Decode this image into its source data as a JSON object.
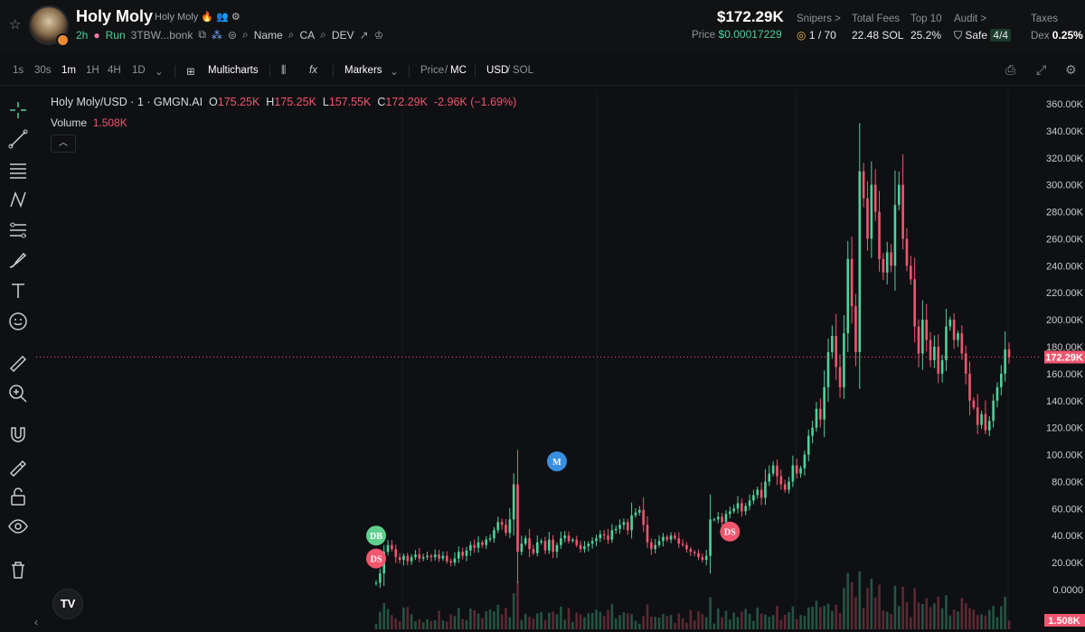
{
  "header": {
    "token_name": "Holy Moly",
    "token_sub": "Holy Moly",
    "age": "2h",
    "launchpad": "Run",
    "address": "3TBW...bonk",
    "links": [
      "Name",
      "CA",
      "DEV"
    ],
    "market_cap": "$172.29K",
    "price_label": "Price",
    "price_value": "$0.00017229",
    "snipers_label": "Snipers >",
    "snipers_value": "1 / 70",
    "total_fees_label": "Total Fees",
    "total_fees_value": "22.48 SOL",
    "top10_label": "Top 10",
    "top10_value": "25.2%",
    "audit_label": "Audit >",
    "audit_value": "Safe",
    "audit_count": "4/4",
    "taxes_label": "Taxes",
    "taxes_dex": "Dex",
    "taxes_value": "0.25%"
  },
  "toolbar": {
    "intervals": [
      "1s",
      "30s",
      "1m",
      "1H",
      "4H",
      "1D"
    ],
    "active_interval": "1m",
    "multicharts": "Multicharts",
    "markers": "Markers",
    "price_label": "Price",
    "mc_label": "MC",
    "usd_label": "USD",
    "sol_label": "SOL"
  },
  "legend": {
    "title": "Holy Moly/USD · 1 · GMGN.AI",
    "o_label": "O",
    "o": "175.25K",
    "h_label": "H",
    "h": "175.25K",
    "l_label": "L",
    "l": "157.55K",
    "c_label": "C",
    "c": "172.29K",
    "change": "-2.96K (−1.69%)",
    "volume_label": "Volume",
    "volume_value": "1.508K"
  },
  "axis": {
    "current_value": "172.29K",
    "volume_tag": "1.508K",
    "ticks": [
      "360.00K",
      "340.00K",
      "320.00K",
      "300.00K",
      "280.00K",
      "260.00K",
      "240.00K",
      "220.00K",
      "200.00K",
      "180.00K",
      "160.00K",
      "140.00K",
      "120.00K",
      "100.00K",
      "80.00K",
      "60.00K",
      "40.00K",
      "20.00K",
      "0.0000"
    ]
  },
  "markers": [
    {
      "label": "DB",
      "color": "#5fcf8f",
      "time_index": 0,
      "value": 40
    },
    {
      "label": "DS",
      "color": "#f1566f",
      "time_index": 0,
      "value": 23
    },
    {
      "label": "M",
      "color": "#3a8fe0",
      "time_index": 46,
      "value": 95
    },
    {
      "label": "DS",
      "color": "#f1566f",
      "time_index": 90,
      "value": 43
    }
  ],
  "colors": {
    "up": "#4fd19a",
    "down": "#f1566f",
    "background": "#0f1013"
  },
  "chart_data": {
    "type": "candlestick",
    "ylim": [
      0,
      360
    ],
    "unit": "K",
    "current_price": 172.29,
    "close_series": [
      5,
      12,
      28,
      33,
      30,
      24,
      22,
      25,
      21,
      24,
      26,
      23,
      24,
      25,
      24,
      26,
      23,
      25,
      21,
      20,
      23,
      28,
      25,
      29,
      33,
      31,
      35,
      33,
      37,
      38,
      44,
      50,
      48,
      42,
      52,
      78,
      28,
      34,
      38,
      30,
      27,
      35,
      36,
      29,
      37,
      28,
      33,
      38,
      40,
      36,
      37,
      33,
      30,
      32,
      34,
      36,
      38,
      41,
      40,
      37,
      44,
      45,
      48,
      50,
      44,
      55,
      57,
      59,
      48,
      35,
      30,
      33,
      36,
      39,
      37,
      40,
      38,
      34,
      33,
      30,
      28,
      27,
      24,
      22,
      25,
      52,
      52,
      54,
      50,
      56,
      58,
      60,
      64,
      58,
      62,
      66,
      70,
      74,
      68,
      80,
      86,
      92,
      84,
      78,
      74,
      80,
      92,
      86,
      90,
      100,
      114,
      120,
      134,
      126,
      150,
      176,
      188,
      165,
      150,
      190,
      245,
      210,
      176,
      310,
      290,
      260,
      300,
      280,
      245,
      235,
      250,
      240,
      285,
      300,
      260,
      240,
      230,
      195,
      175,
      200,
      185,
      170,
      180,
      160,
      170,
      195,
      200,
      185,
      190,
      175,
      160,
      140,
      135,
      122,
      130,
      118,
      125,
      140,
      150,
      160,
      178,
      172
    ]
  }
}
